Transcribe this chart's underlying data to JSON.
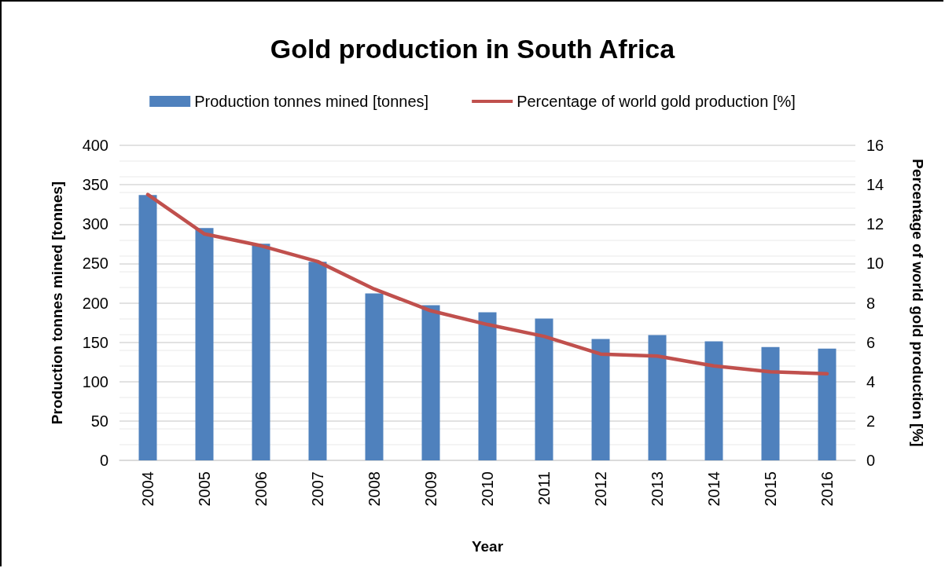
{
  "chart_data": {
    "type": "bar",
    "title": "Gold production in South Africa",
    "xlabel": "Year",
    "ylabel": "Production tonnes mined [tonnes]",
    "y2label": "Percentage of world gold production [%]",
    "categories": [
      "2004",
      "2005",
      "2006",
      "2007",
      "2008",
      "2009",
      "2010",
      "2011",
      "2012",
      "2013",
      "2014",
      "2015",
      "2016"
    ],
    "series": [
      {
        "name": "Production tonnes mined [tonnes]",
        "color": "#4f81bd",
        "values": [
          337,
          295,
          275,
          252,
          212,
          197,
          188,
          180,
          154,
          159,
          151,
          144,
          142
        ]
      },
      {
        "name": "Percentage of world gold production [%]",
        "type": "line",
        "axis": "y2",
        "color": "#c0504d",
        "marker": "none",
        "values": [
          13.5,
          11.5,
          10.9,
          10.1,
          8.7,
          7.6,
          6.9,
          6.3,
          5.4,
          5.3,
          4.8,
          4.5,
          4.4
        ]
      }
    ],
    "ylim": [
      0,
      400
    ],
    "yticks": [
      0,
      50,
      100,
      150,
      200,
      250,
      300,
      350,
      400
    ],
    "y2lim": [
      0,
      16
    ],
    "y2ticks": [
      0,
      2,
      4,
      6,
      8,
      10,
      12,
      14,
      16
    ],
    "grid": "y",
    "legend": "top"
  }
}
